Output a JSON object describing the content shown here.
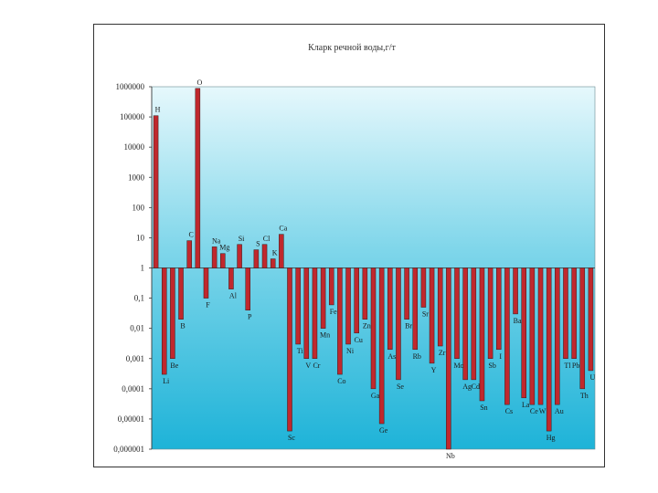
{
  "chart_data": {
    "type": "bar",
    "title": "Кларк речной воды,г/т",
    "scale": "log",
    "ylim": [
      1e-06,
      1000000
    ],
    "baseline": 1,
    "grid": false,
    "background": "sky-blue gradient",
    "bar_color": "#c0282d",
    "yticks": [
      "1000000",
      "100000",
      "10000",
      "1000",
      "100",
      "10",
      "1",
      "0,1",
      "0,01",
      "0,001",
      "0,0001",
      "0,00001",
      "0,000001"
    ],
    "series": [
      {
        "points": [
          {
            "label": "H",
            "value": 110000
          },
          {
            "label": "Li",
            "value": 0.0003
          },
          {
            "label": "Be",
            "value": 0.001
          },
          {
            "label": "B",
            "value": 0.02
          },
          {
            "label": "C",
            "value": 8
          },
          {
            "label": "O",
            "value": 880000
          },
          {
            "label": "F",
            "value": 0.1
          },
          {
            "label": "Na",
            "value": 5
          },
          {
            "label": "Mg",
            "value": 3
          },
          {
            "label": "Al",
            "value": 0.2
          },
          {
            "label": "Si",
            "value": 6
          },
          {
            "label": "P",
            "value": 0.04
          },
          {
            "label": "S",
            "value": 4
          },
          {
            "label": "Cl",
            "value": 6
          },
          {
            "label": "K",
            "value": 2
          },
          {
            "label": "Ca",
            "value": 13
          },
          {
            "label": "Sc",
            "value": 4e-06
          },
          {
            "label": "Ti",
            "value": 0.003
          },
          {
            "label": "V",
            "value": 0.001
          },
          {
            "label": "Cr",
            "value": 0.001
          },
          {
            "label": "Mn",
            "value": 0.01
          },
          {
            "label": "Fe",
            "value": 0.06
          },
          {
            "label": "Co",
            "value": 0.0003
          },
          {
            "label": "Ni",
            "value": 0.003
          },
          {
            "label": "Cu",
            "value": 0.007
          },
          {
            "label": "Zn",
            "value": 0.02
          },
          {
            "label": "Ga",
            "value": 0.0001
          },
          {
            "label": "Ge",
            "value": 7e-06
          },
          {
            "label": "As",
            "value": 0.002
          },
          {
            "label": "Se",
            "value": 0.0002
          },
          {
            "label": "Br",
            "value": 0.02
          },
          {
            "label": "Rb",
            "value": 0.002
          },
          {
            "label": "Sr",
            "value": 0.05
          },
          {
            "label": "Y",
            "value": 0.0007
          },
          {
            "label": "Zr",
            "value": 0.0026
          },
          {
            "label": "Nb",
            "value": 1e-06
          },
          {
            "label": "Mo",
            "value": 0.001
          },
          {
            "label": "Ag",
            "value": 0.0002
          },
          {
            "label": "Cd",
            "value": 0.0002
          },
          {
            "label": "Sn",
            "value": 4e-05
          },
          {
            "label": "Sb",
            "value": 0.001
          },
          {
            "label": "I",
            "value": 0.002
          },
          {
            "label": "Cs",
            "value": 3e-05
          },
          {
            "label": "Ba",
            "value": 0.03
          },
          {
            "label": "La",
            "value": 5e-05
          },
          {
            "label": "Ce",
            "value": 3e-05
          },
          {
            "label": "W",
            "value": 3e-05
          },
          {
            "label": "Hg",
            "value": 4e-06
          },
          {
            "label": "Au",
            "value": 3e-05
          },
          {
            "label": "Tl",
            "value": 0.001
          },
          {
            "label": "Pb",
            "value": 0.001
          },
          {
            "label": "Th",
            "value": 0.0001
          },
          {
            "label": "U",
            "value": 0.0004
          }
        ]
      }
    ]
  }
}
